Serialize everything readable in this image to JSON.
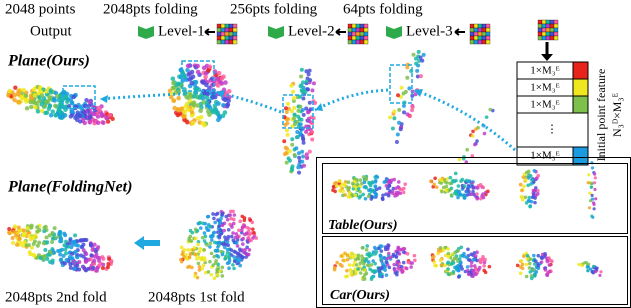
{
  "header": {
    "output_title": "2048 points",
    "output_sub": "Output",
    "folds": [
      "2048pts folding",
      "256pts folding",
      "64pts folding"
    ],
    "levels": [
      "Level-1",
      "Level-2",
      "Level-3"
    ]
  },
  "panels": {
    "plane_ours": "Plane(Ours)",
    "plane_foldingnet": "Plane(FoldingNet)",
    "fold2": "2048pts 2nd fold",
    "fold1": "2048pts 1st fold",
    "table": "Table(Ours)",
    "car": "Car(Ours)"
  },
  "feature": {
    "rows": [
      "1×M₃ᴱ",
      "1×M₃ᴱ",
      "1×M₃ᴱ",
      "⋮",
      "1×M₃ᴱ"
    ],
    "caption": "Initial point feature",
    "shape": "N₃ᴰ×M₃ᴱ"
  }
}
